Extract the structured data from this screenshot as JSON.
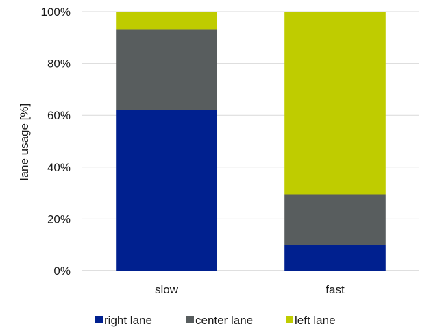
{
  "chart_data": {
    "type": "bar",
    "stacked": true,
    "percent_stacked": true,
    "categories": [
      "slow",
      "fast"
    ],
    "series": [
      {
        "name": "right lane",
        "values": [
          62,
          10
        ],
        "color": "#00208f"
      },
      {
        "name": "center lane",
        "values": [
          31,
          19.5
        ],
        "color": "#585d5e"
      },
      {
        "name": "left lane",
        "values": [
          7,
          70.5
        ],
        "color": "#bfcc00"
      }
    ],
    "ylabel": "lane usage [%]",
    "ylim": [
      0,
      100
    ],
    "yticks": [
      0,
      20,
      40,
      60,
      80,
      100
    ],
    "ytick_labels": [
      "0%",
      "20%",
      "40%",
      "60%",
      "80%",
      "100%"
    ],
    "grid": true,
    "legend_position": "bottom"
  }
}
